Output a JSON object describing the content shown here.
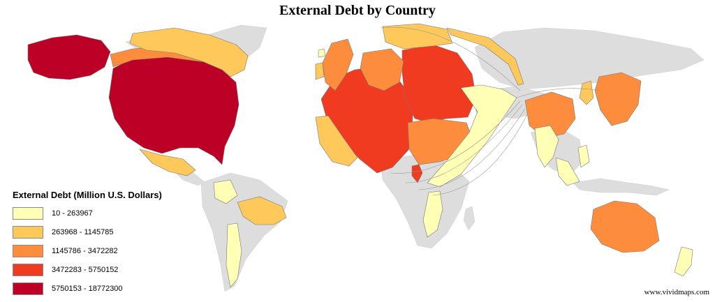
{
  "title": "External Debt by Country",
  "colors": {
    "no_data": "#dddddd",
    "class1": "#ffffb5",
    "class2": "#fec85a",
    "class3": "#fd8d3c",
    "class4": "#f03b20",
    "class5": "#bd0026"
  },
  "legend": {
    "title": "External Debt (Million U.S. Dollars)",
    "items": [
      {
        "label": "10 - 263967",
        "color": "#ffffb5"
      },
      {
        "label": "263968 - 1145785",
        "color": "#fec85a"
      },
      {
        "label": "1145786 - 3472282",
        "color": "#fd8d3c"
      },
      {
        "label": "3472283 - 5750152",
        "color": "#f03b20"
      },
      {
        "label": "5750153 - 18772300",
        "color": "#bd0026"
      }
    ]
  },
  "credit": "www.vividmaps.com"
}
